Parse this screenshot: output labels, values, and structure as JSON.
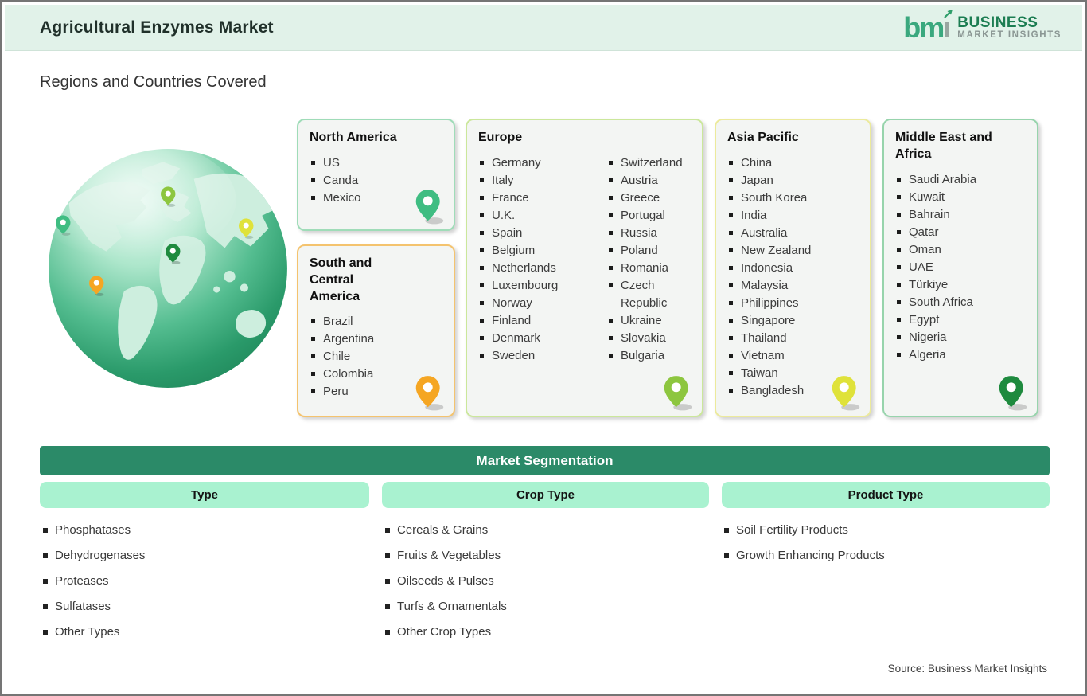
{
  "header": {
    "title": "Agricultural Enzymes Market",
    "logo": {
      "mark_green": "bm",
      "mark_gray": "ı",
      "line1": "BUSINESS",
      "line2": "MARKET INSIGHTS"
    }
  },
  "section_title": "Regions and Countries Covered",
  "regions": [
    {
      "name": "North America",
      "countries": [
        "US",
        "Canda",
        "Mexico"
      ],
      "accent_border": "#9fdcb8",
      "pin_color": "#3fbd82"
    },
    {
      "name": "South and Central America",
      "countries": [
        "Brazil",
        "Argentina",
        "Chile",
        "Colombia",
        "Peru"
      ],
      "accent_border": "#f4c36e",
      "pin_color": "#f5a623"
    },
    {
      "name": "Europe",
      "columns": [
        [
          "Germany",
          "Italy",
          "France",
          "U.K.",
          "Spain",
          "Belgium",
          "Netherlands",
          "Luxembourg",
          "Norway",
          "Finland",
          "Denmark",
          "Sweden"
        ],
        [
          "Switzerland",
          "Austria",
          "Greece",
          "Portugal",
          "Russia",
          "Poland",
          "Romania",
          "Czech Republic",
          "Ukraine",
          "Slovakia",
          "Bulgaria"
        ]
      ],
      "accent_border": "#cbe79b",
      "pin_color": "#8dc63f"
    },
    {
      "name": "Asia Pacific",
      "countries": [
        "China",
        "Japan",
        "South Korea",
        "India",
        "Australia",
        "New Zealand",
        "Indonesia",
        "Malaysia",
        "Philippines",
        "Singapore",
        "Thailand",
        "Vietnam",
        "Taiwan",
        "Bangladesh"
      ],
      "accent_border": "#ecea9c",
      "pin_color": "#dfe23a"
    },
    {
      "name": "Middle East and Africa",
      "countries": [
        "Saudi Arabia",
        "Kuwait",
        "Bahrain",
        "Qatar",
        "Oman",
        "UAE",
        "Türkiye",
        "South Africa",
        "Egypt",
        "Nigeria",
        "Algeria"
      ],
      "accent_border": "#97d4ac",
      "pin_color": "#1e8a3e"
    }
  ],
  "segmentation": {
    "title": "Market Segmentation",
    "columns": [
      {
        "header": "Type",
        "items": [
          "Phosphatases",
          "Dehydrogenases",
          "Proteases",
          "Sulfatases",
          "Other Types"
        ]
      },
      {
        "header": "Crop Type",
        "items": [
          "Cereals & Grains",
          "Fruits & Vegetables",
          "Oilseeds & Pulses",
          "Turfs & Ornamentals",
          "Other Crop Types"
        ]
      },
      {
        "header": "Product Type",
        "items": [
          "Soil Fertility Products",
          "Growth Enhancing Products"
        ]
      }
    ]
  },
  "source": "Source: Business Market Insights",
  "colors": {
    "header_band": "#e1f2e9",
    "seg_bar": "#2b8a68",
    "seg_pill": "#a9f2d0",
    "logo_green": "#3aa87e",
    "logo_gray": "#98a5a0"
  }
}
